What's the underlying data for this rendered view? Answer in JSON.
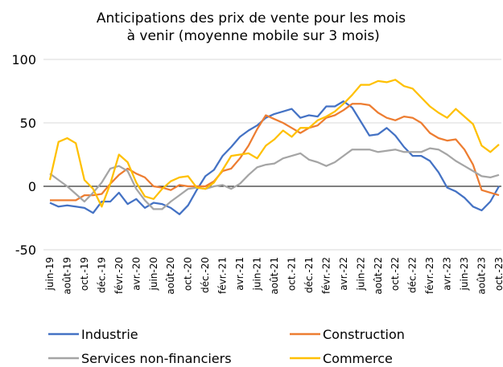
{
  "chart_data": {
    "type": "line",
    "title": "Anticipations des prix de vente pour les mois à venir (moyenne mobile sur 3 mois)",
    "categories": [
      "juin-19",
      null,
      "août-19",
      null,
      "oct.-19",
      null,
      "déc.-19",
      null,
      "févr.-20",
      null,
      "avr.-20",
      null,
      "juin-20",
      null,
      "août-20",
      null,
      "oct.-20",
      null,
      "déc.-20",
      null,
      "févr.-21",
      null,
      "avr.-21",
      null,
      "juin-21",
      null,
      "août-21",
      null,
      "oct.-21",
      null,
      "déc.-21",
      null,
      "févr.-22",
      null,
      "avr.-22",
      null,
      "juin-22",
      null,
      "août-22",
      null,
      "oct.-22",
      null,
      "déc.-22",
      null,
      "févr.-23",
      null,
      "avr.-23",
      null,
      "juin-23",
      null,
      "août-23",
      null,
      "oct.-23"
    ],
    "series": [
      {
        "name": "Industrie",
        "color": "#4472c4",
        "values": [
          -13,
          -16,
          -15,
          -16,
          -17,
          -21,
          -12,
          -12,
          -5,
          -14,
          -10,
          -17,
          -13,
          -14,
          -17,
          -22,
          -15,
          -3,
          8,
          13,
          24,
          31,
          39,
          44,
          48,
          54,
          57,
          59,
          61,
          54,
          56,
          55,
          63,
          63,
          67,
          62,
          51,
          40,
          41,
          46,
          40,
          31,
          24,
          24,
          20,
          11,
          -1,
          -4,
          -9,
          -16,
          -19,
          -12,
          0
        ]
      },
      {
        "name": "Construction",
        "color": "#ed7d31",
        "values": [
          -11,
          -11,
          -11,
          -11,
          -7,
          -7,
          -6,
          2,
          9,
          14,
          10,
          7,
          0,
          -1,
          -3,
          1,
          0,
          0,
          0,
          4,
          12,
          14,
          22,
          32,
          45,
          56,
          53,
          50,
          46,
          42,
          46,
          48,
          54,
          56,
          60,
          65,
          65,
          64,
          58,
          54,
          52,
          55,
          54,
          50,
          42,
          38,
          36,
          37,
          29,
          17,
          -3,
          -5,
          -7
        ]
      },
      {
        "name": "Services non-financiers",
        "color": "#a5a5a5",
        "values": [
          10,
          5,
          0,
          -6,
          -12,
          -5,
          3,
          14,
          16,
          12,
          -2,
          -11,
          -18,
          -18,
          -12,
          -7,
          -2,
          -1,
          -2,
          0,
          1,
          -2,
          2,
          9,
          15,
          17,
          18,
          22,
          24,
          26,
          21,
          19,
          16,
          19,
          24,
          29,
          29,
          29,
          27,
          28,
          29,
          27,
          27,
          27,
          30,
          29,
          25,
          20,
          16,
          12,
          8,
          7,
          9
        ]
      },
      {
        "name": "Commerce",
        "color": "#ffc000",
        "values": [
          5,
          35,
          38,
          34,
          5,
          -2,
          -16,
          2,
          25,
          19,
          3,
          -8,
          -10,
          -2,
          4,
          7,
          8,
          -1,
          -2,
          3,
          13,
          24,
          25,
          26,
          22,
          32,
          37,
          44,
          39,
          46,
          46,
          52,
          55,
          59,
          65,
          72,
          80,
          80,
          83,
          82,
          84,
          79,
          77,
          70,
          63,
          58,
          54,
          61,
          55,
          49,
          32,
          27,
          33
        ]
      }
    ],
    "ylim": [
      -50,
      100
    ],
    "yticks": [
      -50,
      0,
      50,
      100
    ],
    "grid": true
  }
}
